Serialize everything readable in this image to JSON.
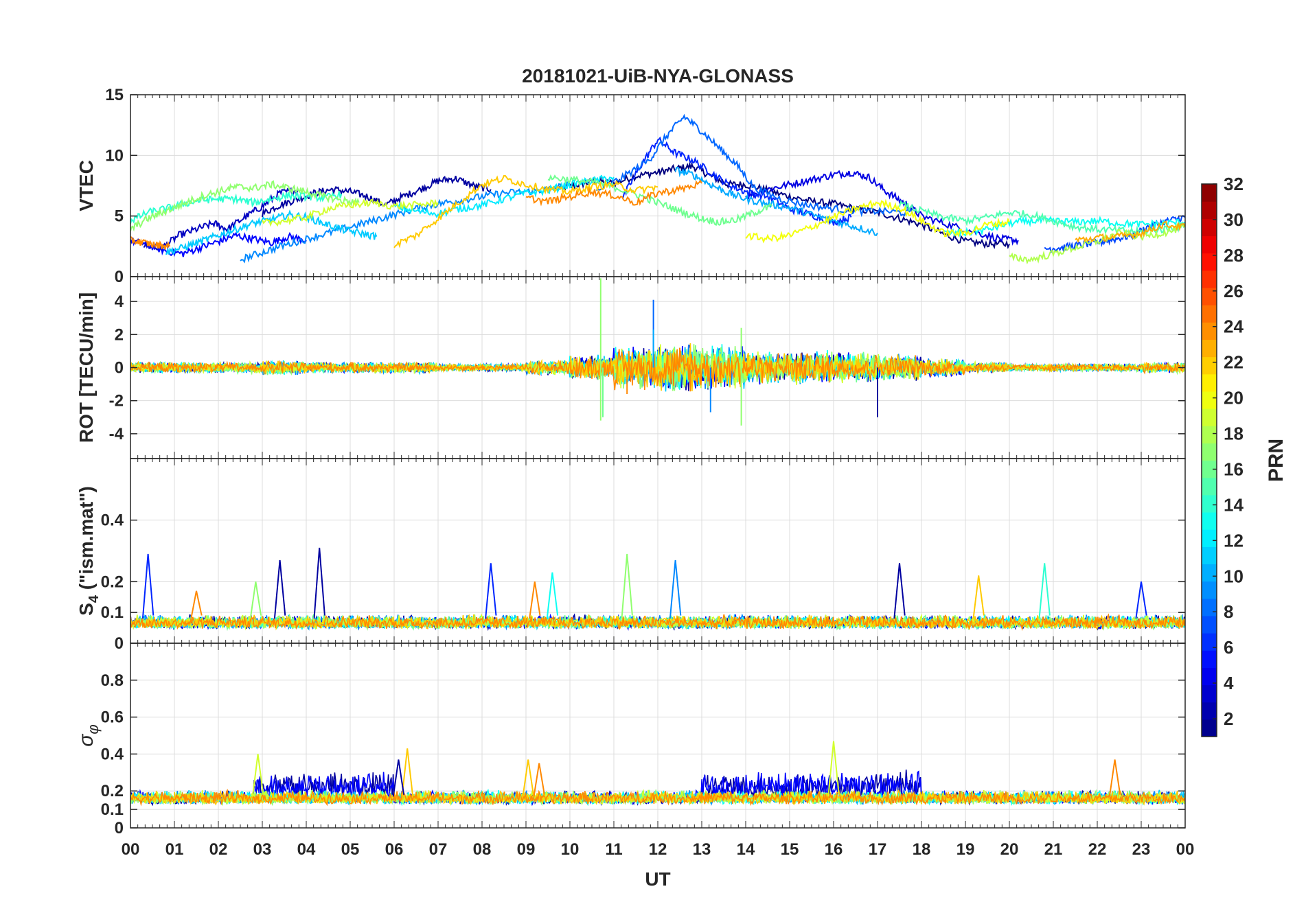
{
  "chart_data": {
    "type": "line",
    "title": "20181021-UiB-NYA-GLONASS",
    "xlabel": "UT",
    "x_tick_labels": [
      "00",
      "01",
      "02",
      "03",
      "04",
      "05",
      "06",
      "07",
      "08",
      "09",
      "10",
      "11",
      "12",
      "13",
      "14",
      "15",
      "16",
      "17",
      "18",
      "19",
      "20",
      "21",
      "22",
      "23",
      "00"
    ],
    "xlim": [
      0,
      24
    ],
    "grid": true,
    "colorbar": {
      "label": "PRN",
      "range": [
        1,
        32
      ],
      "tick_labels": [
        "2",
        "4",
        "6",
        "8",
        "10",
        "12",
        "14",
        "16",
        "18",
        "20",
        "22",
        "24",
        "26",
        "28",
        "30",
        "32"
      ],
      "tick_values": [
        2,
        4,
        6,
        8,
        10,
        12,
        14,
        16,
        18,
        20,
        22,
        24,
        26,
        28,
        30,
        32
      ],
      "colormap": "jet",
      "levels": 32
    },
    "panels": [
      {
        "id": "vtec",
        "ylabel": "VTEC",
        "ylim": [
          0,
          15
        ],
        "y_ticks": [
          0,
          5,
          10,
          15
        ],
        "y_tick_labels": [
          "0",
          "5",
          "10",
          "15"
        ],
        "series": [
          {
            "prn": 1,
            "x": [
              9.7,
              10.2,
              10.6,
              11.0,
              11.5,
              12.0,
              12.4,
              12.8,
              13.2,
              13.6,
              14.0,
              14.5,
              15.0,
              15.5,
              16.0,
              16.5,
              17.0,
              17.5,
              18.0,
              18.5,
              19.0,
              19.5,
              20.0
            ],
            "y": [
              7.2,
              7.6,
              7.9,
              7.7,
              8.3,
              8.6,
              8.9,
              9.1,
              8.3,
              7.6,
              7.6,
              7.1,
              6.6,
              6.2,
              6.0,
              5.6,
              5.3,
              4.8,
              4.3,
              3.5,
              2.9,
              2.7,
              2.7
            ]
          },
          {
            "prn": 2,
            "x": [
              3.0,
              3.4,
              3.8,
              4.2,
              4.6,
              5.0,
              5.4,
              5.8,
              6.2,
              6.6,
              7.0,
              7.4,
              7.8,
              8.2
            ],
            "y": [
              5.2,
              5.9,
              6.4,
              6.9,
              7.2,
              7.0,
              6.6,
              5.9,
              6.6,
              7.2,
              7.9,
              8.1,
              7.5,
              7.2
            ]
          },
          {
            "prn": 3,
            "x": [
              0.3,
              0.7,
              1.1,
              1.5,
              1.9,
              2.2,
              2.6,
              3.0,
              3.4,
              3.8
            ],
            "y": [
              2.6,
              2.3,
              3.4,
              3.9,
              4.4,
              3.9,
              4.9,
              5.8,
              6.9,
              7.1
            ]
          },
          {
            "prn": 4,
            "x": [
              14.0,
              14.5,
              15.0,
              15.5,
              16.0,
              16.4,
              16.8,
              17.2,
              17.6,
              18.0,
              18.6,
              19.2,
              19.8,
              20.2
            ],
            "y": [
              6.6,
              7.2,
              7.6,
              8.0,
              8.4,
              8.6,
              8.2,
              7.0,
              6.1,
              5.0,
              4.3,
              3.7,
              3.1,
              3.0
            ]
          },
          {
            "prn": 5,
            "x": [
              0.0,
              0.4,
              0.8,
              1.2,
              1.6,
              2.0,
              2.4,
              2.8,
              3.2,
              3.6,
              4.0
            ],
            "y": [
              3.0,
              2.6,
              2.1,
              1.9,
              2.4,
              2.9,
              3.4,
              3.1,
              2.8,
              3.3,
              3.0
            ]
          },
          {
            "prn": 6,
            "x": [
              11.2,
              11.6,
              12.0,
              12.4,
              12.8,
              13.2,
              13.6,
              14.0,
              14.5,
              15.0,
              15.5,
              16.0,
              16.4
            ],
            "y": [
              6.5,
              9.1,
              11.3,
              10.2,
              9.6,
              8.6,
              7.6,
              7.0,
              6.6,
              5.6,
              5.1,
              4.5,
              4.9
            ]
          },
          {
            "prn": 7,
            "x": [
              20.8,
              21.2,
              21.6,
              22.0,
              22.4,
              22.8,
              23.2,
              23.6,
              24.0
            ],
            "y": [
              2.3,
              2.4,
              2.6,
              2.8,
              3.1,
              3.4,
              4.2,
              4.6,
              4.9
            ]
          },
          {
            "prn": 8,
            "x": [
              10.6,
              11.2,
              11.8,
              12.2,
              12.6,
              13.0,
              13.4,
              13.8,
              14.2,
              14.8,
              15.4,
              16.0,
              16.6,
              17.2,
              17.8
            ],
            "y": [
              7.0,
              8.2,
              9.6,
              11.6,
              13.2,
              12.0,
              10.6,
              9.2,
              7.3,
              6.4,
              5.9,
              5.6,
              5.4,
              5.4,
              5.2
            ]
          },
          {
            "prn": 9,
            "x": [
              2.5,
              3.0,
              3.5,
              4.0,
              4.5,
              5.0,
              5.5,
              6.0,
              6.5,
              7.0,
              7.5,
              8.0,
              8.5,
              9.0,
              9.5,
              10.0
            ],
            "y": [
              1.4,
              2.0,
              2.6,
              3.1,
              3.6,
              4.1,
              4.6,
              5.1,
              5.6,
              6.0,
              6.3,
              6.6,
              6.9,
              7.0,
              7.2,
              7.6
            ]
          },
          {
            "prn": 10,
            "x": [
              12.4,
              12.8,
              13.2,
              13.6,
              14.0,
              14.5,
              15.0,
              15.5,
              16.0,
              16.5,
              17.0
            ],
            "y": [
              8.8,
              8.4,
              7.6,
              6.9,
              6.4,
              6.0,
              5.7,
              5.1,
              4.6,
              4.1,
              3.6
            ]
          },
          {
            "prn": 11,
            "x": [
              0.8,
              1.2,
              1.6,
              2.0,
              2.4,
              2.8,
              3.2,
              3.6,
              4.0,
              4.4,
              4.8,
              5.2,
              5.6
            ],
            "y": [
              2.0,
              2.4,
              2.9,
              3.4,
              3.9,
              4.4,
              4.7,
              5.1,
              4.9,
              4.4,
              3.9,
              3.6,
              3.3
            ]
          },
          {
            "prn": 12,
            "x": [
              6.0,
              6.5,
              7.0,
              7.5,
              8.0,
              8.5,
              9.0,
              9.5,
              10.0,
              10.5,
              11.0
            ],
            "y": [
              5.8,
              5.4,
              5.2,
              5.6,
              5.9,
              6.4,
              6.9,
              7.1,
              7.6,
              7.9,
              8.2
            ]
          },
          {
            "prn": 13,
            "x": [
              18.5,
              19.0,
              19.5,
              20.0,
              20.5,
              21.0,
              21.5,
              22.0,
              22.5,
              23.0,
              23.5,
              24.0
            ],
            "y": [
              3.6,
              3.6,
              3.9,
              4.4,
              4.6,
              4.6,
              4.5,
              4.6,
              4.4,
              4.3,
              4.4,
              4.5
            ]
          },
          {
            "prn": 14,
            "x": [
              0.0,
              0.4,
              0.8,
              1.2,
              1.6,
              2.0,
              2.4,
              2.8,
              3.2,
              3.6,
              4.0,
              4.4,
              4.8
            ],
            "y": [
              4.6,
              5.3,
              5.6,
              6.0,
              6.3,
              6.4,
              6.4,
              6.1,
              6.4,
              6.7,
              6.6,
              6.5,
              6.8
            ]
          },
          {
            "prn": 15,
            "x": [
              17.5,
              18.0,
              18.5,
              19.0,
              19.5,
              20.0,
              20.5,
              21.0,
              21.5,
              22.0,
              22.5,
              23.0,
              23.5,
              24.0
            ],
            "y": [
              6.0,
              5.4,
              4.9,
              4.6,
              4.9,
              5.3,
              5.1,
              4.6,
              4.1,
              3.9,
              3.8,
              3.7,
              3.9,
              4.2
            ]
          },
          {
            "prn": 16,
            "x": [
              9.5,
              10.0,
              10.5,
              11.0,
              11.5,
              12.0,
              12.5,
              13.0,
              13.4,
              13.8,
              14.2,
              14.6
            ],
            "y": [
              8.2,
              8.0,
              7.8,
              7.4,
              6.8,
              6.1,
              5.4,
              4.8,
              4.5,
              4.7,
              5.3,
              5.8
            ]
          },
          {
            "prn": 17,
            "x": [
              0.0,
              0.4,
              0.8,
              1.2,
              1.6,
              2.0,
              2.4,
              2.8,
              3.2,
              3.6,
              4.0,
              4.4,
              4.8,
              5.2
            ],
            "y": [
              3.9,
              4.8,
              5.4,
              6.0,
              6.6,
              7.0,
              7.4,
              7.3,
              7.6,
              7.3,
              7.0,
              6.6,
              6.3,
              6.1
            ]
          },
          {
            "prn": 18,
            "x": [
              20.0,
              20.5,
              21.0,
              21.5,
              22.0,
              22.5,
              23.0,
              23.5,
              24.0
            ],
            "y": [
              1.6,
              1.4,
              1.9,
              2.4,
              2.9,
              3.6,
              3.3,
              3.6,
              4.1
            ]
          },
          {
            "prn": 19,
            "x": [
              3.0,
              3.5,
              4.0,
              4.5,
              5.0,
              5.5,
              6.0,
              6.5,
              7.0
            ],
            "y": [
              4.4,
              4.6,
              4.9,
              5.6,
              5.9,
              6.1,
              5.8,
              5.9,
              6.1
            ]
          },
          {
            "prn": 20,
            "x": [
              14.0,
              14.5,
              15.0,
              15.5,
              16.0,
              16.5,
              17.0,
              17.5,
              18.0,
              18.5,
              19.0,
              19.5,
              20.0
            ],
            "y": [
              3.4,
              3.1,
              3.4,
              4.1,
              4.9,
              5.6,
              6.1,
              5.7,
              4.6,
              3.6,
              3.6,
              4.3,
              4.5
            ]
          },
          {
            "prn": 22,
            "x": [
              6.0,
              6.5,
              7.0,
              7.5,
              8.0,
              8.5,
              9.0,
              9.5,
              10.0,
              10.5,
              11.0,
              11.5,
              12.0
            ],
            "y": [
              2.6,
              3.4,
              4.8,
              6.2,
              7.6,
              8.1,
              7.6,
              7.2,
              7.0,
              7.4,
              7.6,
              7.1,
              7.4
            ]
          },
          {
            "prn": 23,
            "x": [
              21.5,
              22.0,
              22.5,
              23.0,
              23.5,
              24.0
            ],
            "y": [
              3.0,
              3.2,
              3.3,
              3.6,
              4.3,
              4.1
            ]
          },
          {
            "prn": 24,
            "x": [
              9.0,
              9.5,
              10.0,
              10.5,
              11.0,
              11.5,
              12.0,
              12.5,
              13.0
            ],
            "y": [
              6.5,
              6.2,
              6.6,
              7.0,
              6.7,
              6.1,
              6.9,
              7.2,
              7.7
            ]
          },
          {
            "prn": 24,
            "x": [
              0.0,
              0.3,
              0.6,
              0.9
            ],
            "y": [
              3.0,
              2.8,
              2.6,
              2.5
            ]
          }
        ]
      },
      {
        "id": "rot",
        "ylabel": "ROT [TECU/min]",
        "ylim": [
          -5.5,
          5.5
        ],
        "y_ticks": [
          -4,
          -2,
          0,
          2,
          4
        ],
        "y_tick_labels": [
          "-4",
          "-2",
          "0",
          "2",
          "4"
        ],
        "noise_amplitude_by_hour": [
          0.3,
          0.3,
          0.3,
          0.4,
          0.3,
          0.3,
          0.3,
          0.2,
          0.2,
          0.4,
          0.7,
          1.2,
          1.3,
          1.2,
          0.9,
          0.9,
          0.8,
          0.7,
          0.5,
          0.3,
          0.2,
          0.2,
          0.2,
          0.3
        ],
        "spikes": [
          {
            "x": 10.7,
            "y": 5.4,
            "prn": 17
          },
          {
            "x": 10.7,
            "y": -3.2,
            "prn": 17
          },
          {
            "x": 10.75,
            "y": -3.0,
            "prn": 16
          },
          {
            "x": 11.9,
            "y": 4.1,
            "prn": 8
          },
          {
            "x": 11.9,
            "y": 2.3,
            "prn": 10
          },
          {
            "x": 13.9,
            "y": 2.4,
            "prn": 17
          },
          {
            "x": 13.9,
            "y": -3.5,
            "prn": 17
          },
          {
            "x": 13.2,
            "y": -2.7,
            "prn": 9
          },
          {
            "x": 17.0,
            "y": -3.0,
            "prn": 2
          },
          {
            "x": 12.5,
            "y": 1.2,
            "prn": 24
          },
          {
            "x": 11.3,
            "y": -1.6,
            "prn": 24
          }
        ]
      },
      {
        "id": "s4",
        "ylabel": "S4 (\"ism.mat\")",
        "ylim": [
          0,
          0.6
        ],
        "y_ticks": [
          0,
          0.1,
          0.2,
          0.4
        ],
        "y_tick_labels": [
          "0",
          "0.1",
          "0.2",
          "0.4"
        ],
        "baseline": 0.06,
        "spikes": [
          {
            "x": 0.4,
            "y": 0.29,
            "prn": 6
          },
          {
            "x": 1.5,
            "y": 0.17,
            "prn": 24
          },
          {
            "x": 2.85,
            "y": 0.2,
            "prn": 17
          },
          {
            "x": 3.4,
            "y": 0.27,
            "prn": 2
          },
          {
            "x": 4.3,
            "y": 0.31,
            "prn": 2
          },
          {
            "x": 8.2,
            "y": 0.26,
            "prn": 6
          },
          {
            "x": 9.2,
            "y": 0.2,
            "prn": 24
          },
          {
            "x": 9.6,
            "y": 0.23,
            "prn": 13
          },
          {
            "x": 11.3,
            "y": 0.29,
            "prn": 17
          },
          {
            "x": 12.4,
            "y": 0.27,
            "prn": 9
          },
          {
            "x": 17.5,
            "y": 0.26,
            "prn": 2
          },
          {
            "x": 19.3,
            "y": 0.22,
            "prn": 22
          },
          {
            "x": 20.8,
            "y": 0.26,
            "prn": 14
          },
          {
            "x": 23.0,
            "y": 0.2,
            "prn": 6
          }
        ]
      },
      {
        "id": "sigma_phi",
        "ylabel": "σφ",
        "ylim": [
          0,
          1
        ],
        "y_ticks": [
          0,
          0.1,
          0.2,
          0.4,
          0.6,
          0.8
        ],
        "y_tick_labels": [
          "0",
          "0.1",
          "0.2",
          "0.4",
          "0.6",
          "0.8"
        ],
        "baseline": 0.15,
        "spikes": [
          {
            "x": 2.9,
            "y": 0.4,
            "prn": 19
          },
          {
            "x": 6.3,
            "y": 0.43,
            "prn": 22
          },
          {
            "x": 6.1,
            "y": 0.37,
            "prn": 2
          },
          {
            "x": 9.05,
            "y": 0.37,
            "prn": 22
          },
          {
            "x": 16.0,
            "y": 0.47,
            "prn": 19
          },
          {
            "x": 22.4,
            "y": 0.37,
            "prn": 24
          },
          {
            "x": 9.3,
            "y": 0.35,
            "prn": 24
          }
        ]
      }
    ]
  }
}
